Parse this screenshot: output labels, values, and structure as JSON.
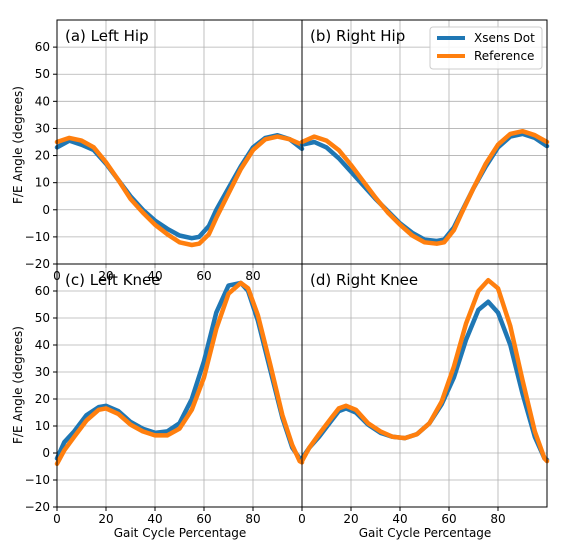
{
  "figure": {
    "y_axis_label": "F/E Angle (degrees)",
    "x_axis_label": "Gait Cycle Percentage",
    "legend": [
      {
        "name": "Xsens Dot",
        "color": "#1f77b4"
      },
      {
        "name": "Reference",
        "color": "#ff7f0e"
      }
    ]
  },
  "chart_data": [
    {
      "type": "line",
      "panel_label": "(a)  Left Hip",
      "xlim": [
        0,
        100
      ],
      "ylim": [
        -20,
        70
      ],
      "x_ticks": [
        "0",
        "20",
        "40",
        "60",
        "80"
      ],
      "y_ticks": [
        "-20",
        "-10",
        "0",
        "10",
        "20",
        "30",
        "40",
        "50",
        "60"
      ],
      "grid": true,
      "series": [
        {
          "name": "Xsens Dot",
          "color": "#1f77b4",
          "x": [
            0,
            5,
            10,
            15,
            20,
            25,
            30,
            35,
            40,
            45,
            50,
            55,
            58,
            62,
            65,
            70,
            75,
            80,
            85,
            90,
            95,
            100
          ],
          "y": [
            23,
            25.5,
            24,
            22,
            17,
            11,
            5,
            0,
            -4,
            -7,
            -9.5,
            -10.5,
            -10,
            -6,
            0,
            8,
            16,
            23,
            26.5,
            27.5,
            26,
            22.5
          ]
        },
        {
          "name": "Reference",
          "color": "#ff7f0e",
          "x": [
            0,
            5,
            10,
            15,
            20,
            25,
            30,
            35,
            40,
            45,
            50,
            55,
            58,
            62,
            65,
            70,
            75,
            80,
            85,
            90,
            95,
            100
          ],
          "y": [
            25,
            26.5,
            25.5,
            23,
            17.5,
            11,
            4,
            -1,
            -5.5,
            -9,
            -12,
            -13,
            -12.5,
            -9,
            -3,
            6,
            15,
            22,
            26,
            27,
            26,
            24
          ]
        }
      ]
    },
    {
      "type": "line",
      "panel_label": "(b)  Right Hip",
      "xlim": [
        0,
        100
      ],
      "ylim": [
        -20,
        70
      ],
      "grid": true,
      "legend_position": "top-right",
      "series": [
        {
          "name": "Xsens Dot",
          "color": "#1f77b4",
          "x": [
            0,
            5,
            10,
            15,
            20,
            25,
            30,
            35,
            40,
            45,
            50,
            55,
            58,
            62,
            65,
            70,
            75,
            80,
            85,
            90,
            95,
            100
          ],
          "y": [
            24,
            25,
            23,
            19,
            14,
            9,
            4,
            -0.5,
            -5,
            -8.5,
            -11,
            -11.5,
            -11,
            -6.5,
            -1,
            8,
            16,
            23,
            27,
            28,
            26.5,
            23.5
          ]
        },
        {
          "name": "Reference",
          "color": "#ff7f0e",
          "x": [
            0,
            5,
            10,
            15,
            20,
            25,
            30,
            35,
            40,
            45,
            50,
            55,
            58,
            62,
            65,
            70,
            75,
            80,
            85,
            90,
            95,
            100
          ],
          "y": [
            25,
            27,
            25.5,
            22,
            16.5,
            10.5,
            4.5,
            -1,
            -5.5,
            -9.5,
            -12,
            -12.5,
            -12,
            -7.5,
            -1.5,
            8,
            17,
            24,
            28,
            29,
            27.5,
            25
          ]
        }
      ]
    },
    {
      "type": "line",
      "panel_label": "(c)  Left Knee",
      "xlim": [
        0,
        100
      ],
      "ylim": [
        -20,
        70
      ],
      "x_ticks": [
        "0",
        "20",
        "40",
        "60",
        "80"
      ],
      "y_ticks": [
        "-20",
        "-10",
        "0",
        "10",
        "20",
        "30",
        "40",
        "50",
        "60"
      ],
      "grid": true,
      "series": [
        {
          "name": "Xsens Dot",
          "color": "#1f77b4",
          "x": [
            0,
            3,
            7,
            12,
            17,
            20,
            25,
            30,
            35,
            40,
            45,
            50,
            55,
            60,
            65,
            70,
            75,
            78,
            82,
            87,
            92,
            96,
            99,
            100
          ],
          "y": [
            -2,
            4,
            8,
            14,
            17,
            17.5,
            15.5,
            11.5,
            9,
            7.5,
            8,
            11,
            20,
            34,
            52,
            62,
            63,
            60,
            49,
            31,
            13,
            2,
            -2,
            -2.5
          ]
        },
        {
          "name": "Reference",
          "color": "#ff7f0e",
          "x": [
            0,
            3,
            7,
            12,
            17,
            20,
            25,
            30,
            35,
            40,
            45,
            50,
            55,
            60,
            65,
            70,
            75,
            78,
            82,
            87,
            92,
            96,
            99,
            100
          ],
          "y": [
            -4,
            1,
            6,
            12,
            16,
            16.5,
            14.5,
            10.5,
            8,
            6.5,
            6.5,
            9,
            16,
            28,
            46,
            59,
            63,
            61,
            51,
            33,
            14,
            3,
            -3,
            -3.5
          ]
        }
      ]
    },
    {
      "type": "line",
      "panel_label": "(d)  Right Knee",
      "xlim": [
        0,
        100
      ],
      "ylim": [
        -20,
        70
      ],
      "grid": true,
      "series": [
        {
          "name": "Xsens Dot",
          "color": "#1f77b4",
          "x": [
            0,
            3,
            7,
            12,
            15,
            18,
            22,
            27,
            32,
            37,
            42,
            47,
            52,
            57,
            62,
            67,
            72,
            76,
            80,
            85,
            90,
            95,
            99,
            100
          ],
          "y": [
            -2,
            2,
            6,
            12,
            15.5,
            16.5,
            15,
            10.5,
            7.5,
            6,
            5.5,
            7,
            11,
            18,
            28,
            42,
            53,
            56,
            52,
            40,
            22,
            6,
            -2,
            -2.5
          ]
        },
        {
          "name": "Reference",
          "color": "#ff7f0e",
          "x": [
            0,
            3,
            7,
            12,
            15,
            18,
            22,
            27,
            32,
            37,
            42,
            47,
            52,
            57,
            62,
            67,
            72,
            76,
            80,
            85,
            90,
            95,
            99,
            100
          ],
          "y": [
            -3,
            2,
            7,
            13,
            16.5,
            17.5,
            16,
            11,
            8,
            6,
            5.5,
            7,
            11,
            19,
            32,
            48,
            60,
            64,
            61,
            47,
            27,
            8,
            -2,
            -3
          ]
        }
      ]
    }
  ]
}
